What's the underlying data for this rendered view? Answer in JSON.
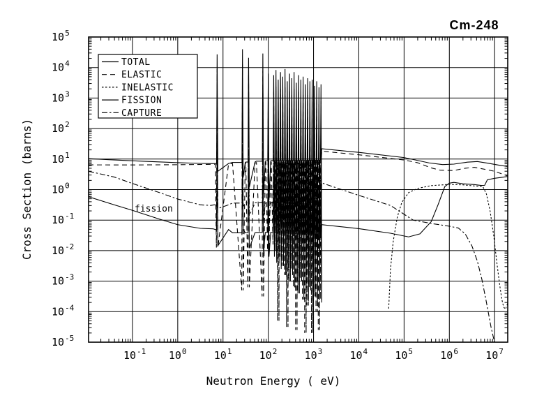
{
  "header": {
    "title": "Cm-248"
  },
  "axes": {
    "x_label": "Neutron Energy ( eV)",
    "y_label": "Cross Section (barns)",
    "tick_base": "10",
    "x_tick_exponents": [
      -1,
      0,
      1,
      2,
      3,
      4,
      5,
      6,
      7
    ],
    "y_tick_exponents": [
      5,
      4,
      3,
      2,
      1,
      0,
      -1,
      -2,
      -3,
      -4,
      -5
    ]
  },
  "legend": {
    "items": [
      {
        "label": "TOTAL",
        "style": "solid"
      },
      {
        "label": "ELASTIC",
        "style": "dash"
      },
      {
        "label": "INELASTIC",
        "style": "dot"
      },
      {
        "label": "FISSION",
        "style": "solid"
      },
      {
        "label": "CAPTURE",
        "style": "dashdot"
      }
    ]
  },
  "annotation": {
    "fission_label": "fission"
  },
  "colors": {
    "ink": "#000000",
    "background": "#ffffff"
  },
  "chart_data": {
    "type": "line",
    "title": "Cm-248",
    "xlabel": "Neutron Energy ( eV)",
    "ylabel": "Cross Section (barns)",
    "x_scale": "log",
    "y_scale": "log",
    "x_range_log10": [
      -1.97,
      7.29
    ],
    "y_range_log10": [
      -5,
      5
    ],
    "x_unit": "eV",
    "y_unit": "barns",
    "grid": true,
    "legend_position": "upper-left",
    "point_columns": [
      "log10_energy_eV",
      "log10_sigma_barns"
    ],
    "series": [
      {
        "name": "TOTAL",
        "style": "solid",
        "res_key": "T",
        "pre": [
          [
            -1.97,
            1.013
          ],
          [
            -1.4,
            0.97
          ],
          [
            -0.8,
            0.93
          ],
          [
            0,
            0.882
          ],
          [
            0.5,
            0.858
          ],
          [
            0.78,
            0.85
          ]
        ],
        "base": [
          [
            0.78,
            0.85
          ],
          [
            1.3,
            0.88
          ],
          [
            2.1,
            0.95
          ],
          [
            3.17,
            0.96
          ]
        ],
        "post": [
          [
            3.18,
            1.34
          ],
          [
            4,
            1.22
          ],
          [
            5,
            1.05
          ],
          [
            5.55,
            0.875
          ],
          [
            5.85,
            0.82
          ],
          [
            6.1,
            0.835
          ],
          [
            6.4,
            0.9
          ],
          [
            6.62,
            0.92
          ],
          [
            6.85,
            0.865
          ],
          [
            7.1,
            0.8
          ],
          [
            7.29,
            0.755
          ]
        ]
      },
      {
        "name": "ELASTIC",
        "style": "dash",
        "res_key": "E",
        "pre": [
          [
            -1.97,
            0.81
          ],
          [
            -1,
            0.808
          ],
          [
            0,
            0.815
          ],
          [
            0.6,
            0.825
          ],
          [
            0.78,
            0.83
          ]
        ],
        "base": [
          [
            0.78,
            0.83
          ],
          [
            1.3,
            0.85
          ],
          [
            2.1,
            0.9
          ],
          [
            3.17,
            0.91
          ]
        ],
        "post": [
          [
            3.18,
            1.26
          ],
          [
            4,
            1.14
          ],
          [
            5,
            0.97
          ],
          [
            5.3,
            0.88
          ],
          [
            5.6,
            0.71
          ],
          [
            5.8,
            0.635
          ],
          [
            6.1,
            0.625
          ],
          [
            6.35,
            0.7
          ],
          [
            6.55,
            0.73
          ],
          [
            6.8,
            0.66
          ],
          [
            7.0,
            0.6
          ],
          [
            7.15,
            0.52
          ],
          [
            7.29,
            0.45
          ]
        ]
      },
      {
        "name": "INELASTIC",
        "style": "dot",
        "points": [
          [
            4.66,
            -3.9
          ],
          [
            4.7,
            -2.6
          ],
          [
            4.76,
            -1.7
          ],
          [
            4.85,
            -0.9
          ],
          [
            4.95,
            -0.42
          ],
          [
            5.1,
            -0.1
          ],
          [
            5.3,
            0.04
          ],
          [
            5.6,
            0.13
          ],
          [
            6.0,
            0.17
          ],
          [
            6.3,
            0.155
          ],
          [
            6.55,
            0.12
          ],
          [
            6.74,
            0.1
          ],
          [
            6.82,
            -0.15
          ],
          [
            6.9,
            -0.7
          ],
          [
            6.98,
            -1.5
          ],
          [
            7.05,
            -2.4
          ],
          [
            7.11,
            -3.1
          ],
          [
            7.16,
            -3.6
          ],
          [
            7.2,
            -3.85
          ],
          [
            7.24,
            -3.92
          ],
          [
            7.27,
            -3.8
          ],
          [
            7.29,
            -3.72
          ]
        ]
      },
      {
        "name": "FISSION",
        "style": "solid",
        "res_key": "F",
        "pre": [
          [
            -1.97,
            -0.235
          ],
          [
            -1.4,
            -0.5
          ],
          [
            -1,
            -0.68
          ],
          [
            -0.4,
            -0.97
          ],
          [
            0,
            -1.15
          ],
          [
            0.5,
            -1.27
          ],
          [
            0.78,
            -1.285
          ]
        ],
        "base": [
          [
            0.78,
            -1.285
          ],
          [
            1.3,
            -1.42
          ],
          [
            2.1,
            -1.4
          ],
          [
            3.17,
            -1.5
          ]
        ],
        "post": [
          [
            3.18,
            -1.15
          ],
          [
            4,
            -1.28
          ],
          [
            4.7,
            -1.43
          ],
          [
            5.1,
            -1.55
          ],
          [
            5.35,
            -1.45
          ],
          [
            5.6,
            -1.05
          ],
          [
            5.75,
            -0.5
          ],
          [
            5.9,
            0.1
          ],
          [
            6.0,
            0.21
          ],
          [
            6.1,
            0.235
          ],
          [
            6.3,
            0.19
          ],
          [
            6.55,
            0.165
          ],
          [
            6.7,
            0.135
          ],
          [
            6.78,
            0.14
          ],
          [
            6.84,
            0.32
          ],
          [
            7.0,
            0.37
          ],
          [
            7.15,
            0.4
          ],
          [
            7.29,
            0.43
          ]
        ]
      },
      {
        "name": "CAPTURE",
        "style": "dashdot",
        "res_key": "C",
        "pre": [
          [
            -1.97,
            0.6
          ],
          [
            -1.4,
            0.41
          ],
          [
            -1,
            0.2
          ],
          [
            -0.4,
            -0.1
          ],
          [
            0,
            -0.31
          ],
          [
            0.5,
            -0.5
          ],
          [
            0.73,
            -0.52
          ]
        ],
        "base": [
          [
            0.73,
            -0.52
          ],
          [
            1.2,
            -0.45
          ],
          [
            2.1,
            -0.42
          ],
          [
            3.17,
            -0.5
          ]
        ],
        "post": [
          [
            3.18,
            0.22
          ],
          [
            4,
            -0.19
          ],
          [
            4.7,
            -0.52
          ],
          [
            5.2,
            -1.0
          ],
          [
            5.6,
            -1.11
          ],
          [
            6.0,
            -1.2
          ],
          [
            6.2,
            -1.26
          ],
          [
            6.35,
            -1.45
          ],
          [
            6.5,
            -1.85
          ],
          [
            6.62,
            -2.35
          ],
          [
            6.72,
            -2.95
          ],
          [
            6.82,
            -3.7
          ],
          [
            6.92,
            -4.5
          ],
          [
            7.02,
            -5.15
          ]
        ]
      }
    ],
    "resonances": {
      "columns": [
        "log10_energy_eV",
        "T_peak",
        "T_dip",
        "E_peak",
        "E_dip",
        "C_peak",
        "C_dip",
        "F_peak",
        "F_dip"
      ],
      "rows": [
        [
          0.87,
          4.43,
          0.6,
          3.95,
          -1.9,
          2.45,
          -0.62,
          1.25,
          -1.84
        ],
        [
          1.43,
          4.6,
          0.4,
          4.1,
          -3.3,
          2.45,
          -0.55,
          1.0,
          -1.3
        ],
        [
          1.565,
          4.32,
          0.08,
          3.8,
          -3.2,
          2.3,
          -0.85,
          0.9,
          -1.92
        ],
        [
          1.88,
          4.46,
          -0.15,
          3.9,
          -3.5,
          2.3,
          -1.0,
          0.8,
          -2.1
        ],
        [
          2.0,
          3.8,
          -0.35,
          3.2,
          -2.0,
          1.9,
          -1.15,
          0.45,
          -2.2
        ],
        [
          2.12,
          3.75,
          -0.6,
          3.2,
          -1.8,
          1.75,
          -1.3,
          0.45,
          -2.2
        ],
        [
          2.17,
          3.92,
          -1.0,
          3.37,
          -2.0,
          1.85,
          -1.5,
          0.6,
          -2.4
        ],
        [
          2.22,
          3.6,
          -0.8,
          3.05,
          -4.3,
          1.6,
          -1.4,
          0.3,
          -2.3
        ],
        [
          2.27,
          3.85,
          -1.3,
          3.3,
          -2.2,
          1.8,
          -1.7,
          0.55,
          -2.6
        ],
        [
          2.32,
          3.7,
          -1.0,
          3.15,
          -2.5,
          1.65,
          -1.6,
          0.4,
          -2.5
        ],
        [
          2.37,
          3.95,
          -1.6,
          3.4,
          -2.8,
          1.85,
          -1.9,
          0.65,
          -2.8
        ],
        [
          2.42,
          3.55,
          -1.2,
          3.0,
          -4.5,
          1.5,
          -1.8,
          0.25,
          -2.6
        ],
        [
          2.47,
          3.8,
          -1.9,
          3.25,
          -3.0,
          1.75,
          -2.1,
          0.5,
          -3.0
        ],
        [
          2.52,
          3.65,
          -1.4,
          3.1,
          -2.6,
          1.6,
          -2.0,
          0.35,
          -2.8
        ],
        [
          2.57,
          3.85,
          -2.2,
          3.3,
          -3.2,
          1.8,
          -2.3,
          0.55,
          -3.2
        ],
        [
          2.62,
          3.5,
          -1.6,
          2.95,
          -4.6,
          1.45,
          -2.1,
          0.2,
          -2.9
        ],
        [
          2.67,
          3.75,
          -2.5,
          3.2,
          -3.4,
          1.7,
          -2.5,
          0.45,
          -3.4
        ],
        [
          2.72,
          3.6,
          -1.8,
          3.05,
          -2.9,
          1.55,
          -2.2,
          0.3,
          -3.0
        ],
        [
          2.77,
          3.7,
          -2.7,
          3.15,
          -3.6,
          1.65,
          -2.6,
          0.4,
          -3.5
        ],
        [
          2.82,
          3.45,
          -2.0,
          2.9,
          -4.7,
          1.4,
          -2.4,
          0.15,
          -3.2
        ],
        [
          2.87,
          3.65,
          -2.8,
          3.1,
          -3.8,
          1.6,
          -2.8,
          0.35,
          -3.6
        ],
        [
          2.92,
          3.55,
          -2.2,
          3.0,
          -3.2,
          1.5,
          -2.5,
          0.25,
          -3.3
        ],
        [
          2.97,
          3.6,
          -2.9,
          3.05,
          -4.7,
          1.55,
          -2.9,
          0.3,
          -3.7
        ],
        [
          3.02,
          3.4,
          -2.4,
          2.85,
          -3.5,
          1.35,
          -2.6,
          0.1,
          -3.4
        ],
        [
          3.07,
          3.55,
          -2.9,
          3.0,
          -4.0,
          1.5,
          -3.0,
          0.25,
          -3.8
        ],
        [
          3.12,
          3.35,
          -2.6,
          2.8,
          -4.6,
          1.3,
          -2.7,
          0.05,
          -3.5
        ],
        [
          3.165,
          3.45,
          -2.9,
          2.9,
          -3.6,
          1.4,
          -3.0,
          0.15,
          -3.7
        ]
      ]
    },
    "annotations": [
      {
        "text": "fission",
        "log10_x": -0.9,
        "log10_y": -0.72
      }
    ]
  }
}
